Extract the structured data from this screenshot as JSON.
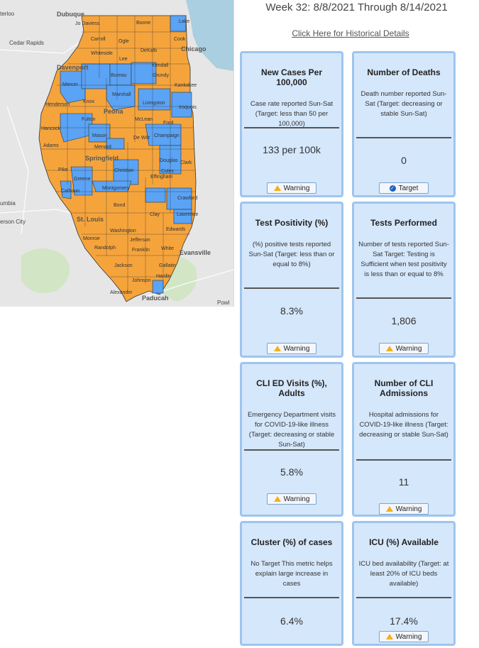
{
  "header": {
    "week_title": "Week 32: 8/8/2021 Through 8/14/2021",
    "history_link": "Click Here for Historical Details"
  },
  "map": {
    "colors": {
      "warning": "#f5a43c",
      "target": "#5aa3f5",
      "water": "#a9cfe0",
      "land": "#e6e6e6",
      "park": "#c9e4b6"
    },
    "cities": [
      "terloo",
      "Dubuque",
      "Cedar Rapids",
      "Davenport",
      "Chicago",
      "Peoria",
      "Springfield",
      "umbia",
      "erson City",
      "St. Louis",
      "Evansville",
      "Paducah",
      "Powl"
    ],
    "counties": [
      "Jo Daviess",
      "Boone",
      "Lake",
      "Carroll",
      "Ogle",
      "Cook",
      "Whiteside",
      "DeKalb",
      "Lee",
      "Kendall",
      "Mercer",
      "Bureau",
      "Grundy",
      "Henderson",
      "Knox",
      "Marshall",
      "Kankakee",
      "Livingston",
      "Iroquois",
      "Hancock",
      "Fulton",
      "Ford",
      "McLean",
      "Adams",
      "Mason",
      "De Witt",
      "Champaign",
      "Menard",
      "Pike",
      "Douglas",
      "Christian",
      "Greene",
      "Coles",
      "Clark",
      "Calhoun",
      "Montgomery",
      "Effingham",
      "Crawford",
      "Bond",
      "Clay",
      "Lawrence",
      "Washington",
      "Monroe",
      "Edwards",
      "Jefferson",
      "Randolph",
      "Franklin",
      "White",
      "Jackson",
      "Gallatin",
      "Johnson",
      "Hardin",
      "Alexander"
    ]
  },
  "cards": [
    {
      "title": "New Cases Per 100,000",
      "desc": "Case rate reported Sun-Sat (Target: less than 50 per 100,000)",
      "value": "133 per 100k",
      "status": "Warning"
    },
    {
      "title": "Number of Deaths",
      "desc": "Death number reported Sun-Sat (Target: decreasing or stable Sun-Sat)",
      "value": "0",
      "status": "Target"
    },
    {
      "title": "Test Positivity (%)",
      "desc": "(%) positive tests reported Sun-Sat (Target: less than or equal to 8%)",
      "value": "8.3%",
      "status": "Warning"
    },
    {
      "title": "Tests Performed",
      "desc": "Number of tests reported Sun-Sat Target: Testing is Sufficient when test positivity is less than or equal to 8%",
      "value": "1,806",
      "status": "Warning"
    },
    {
      "title": "CLI ED Visits (%), Adults",
      "desc": "Emergency Department visits for COVID-19-like illness (Target: decreasing or stable Sun-Sat)",
      "value": "5.8%",
      "status": "Warning"
    },
    {
      "title": "Number of CLI Admissions",
      "desc": "Hospital admissions for COVID-19-like illness (Target: decreasing or stable Sun-Sat)",
      "value": "11",
      "status": "Warning"
    },
    {
      "title": "Cluster (%) of cases",
      "desc": "No Target This metric helps explain large increase in cases",
      "value": "6.4%",
      "status": ""
    },
    {
      "title": "ICU (%) Available",
      "desc": "ICU bed availability (Target: at least 20% of ICU beds available)",
      "value": "17.4%",
      "status": "Warning"
    }
  ]
}
